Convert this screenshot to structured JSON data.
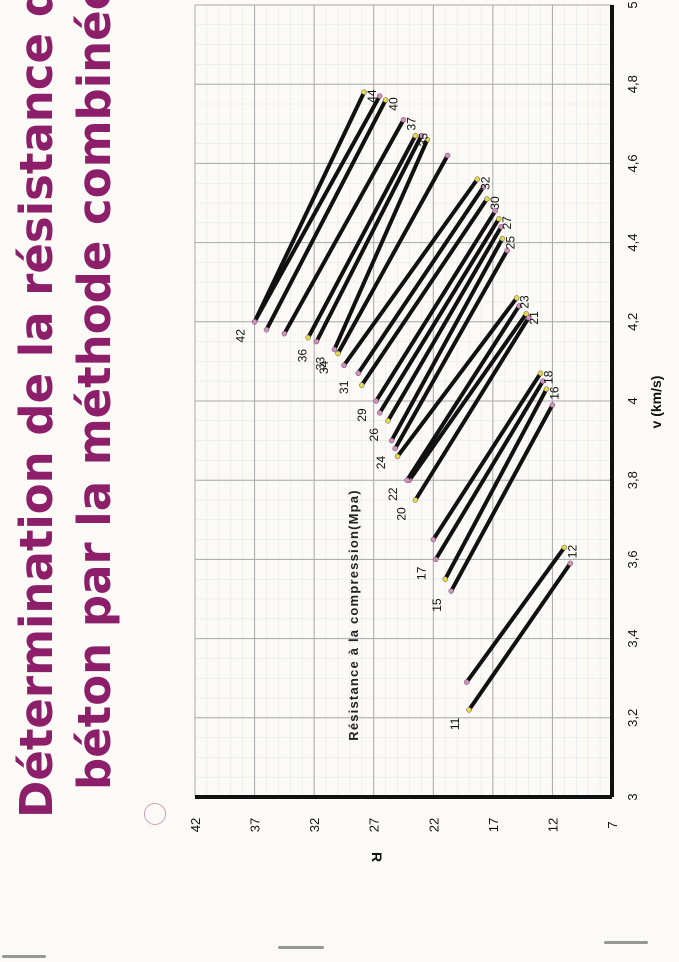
{
  "title": {
    "line1": "Détermination de la résistance du",
    "line2": "béton par la méthode combinée"
  },
  "chart_data": {
    "type": "line",
    "xlabel": "v (km/s)",
    "ylabel": "R",
    "annotation": "Résistance à la compression(Mpa)",
    "xlim": [
      3,
      5
    ],
    "ylim": [
      7,
      42
    ],
    "xticks": [
      "3",
      "3,2",
      "3,4",
      "3,6",
      "3,8",
      "4",
      "4,2",
      "4,4",
      "4,6",
      "4,8",
      "5"
    ],
    "yticks": [
      "7",
      "12",
      "17",
      "22",
      "27",
      "32",
      "37",
      "42"
    ],
    "grid": true,
    "series": [
      {
        "name": "11",
        "x": [
          3.22,
          3.59
        ],
        "y": [
          19.0,
          10.5
        ]
      },
      {
        "name": "12",
        "x": [
          3.29,
          3.63
        ],
        "y": [
          19.2,
          11.0
        ]
      },
      {
        "name": "15",
        "x": [
          3.52,
          3.99
        ],
        "y": [
          20.5,
          12.0
        ]
      },
      {
        "name": "16",
        "x": [
          3.55,
          4.03
        ],
        "y": [
          21.0,
          12.5
        ]
      },
      {
        "name": "17",
        "x": [
          3.6,
          4.05
        ],
        "y": [
          21.8,
          12.8
        ]
      },
      {
        "name": "18",
        "x": [
          3.65,
          4.07
        ],
        "y": [
          22.0,
          13.0
        ]
      },
      {
        "name": "20",
        "x": [
          3.75,
          4.21
        ],
        "y": [
          23.5,
          14.0
        ]
      },
      {
        "name": "21",
        "x": [
          3.8,
          4.22
        ],
        "y": [
          24.0,
          14.2
        ]
      },
      {
        "name": "22",
        "x": [
          3.8,
          4.24
        ],
        "y": [
          24.2,
          14.8
        ]
      },
      {
        "name": "23",
        "x": [
          3.86,
          4.26
        ],
        "y": [
          25.0,
          15.0
        ]
      },
      {
        "name": "24",
        "x": [
          3.88,
          4.38
        ],
        "y": [
          25.2,
          15.8
        ]
      },
      {
        "name": "25",
        "x": [
          3.9,
          4.41
        ],
        "y": [
          25.5,
          16.2
        ]
      },
      {
        "name": "26",
        "x": [
          3.95,
          4.44
        ],
        "y": [
          25.8,
          16.3
        ]
      },
      {
        "name": "27",
        "x": [
          3.97,
          4.46
        ],
        "y": [
          26.5,
          16.5
        ]
      },
      {
        "name": "29",
        "x": [
          4.0,
          4.48
        ],
        "y": [
          26.8,
          16.8
        ]
      },
      {
        "name": "30",
        "x": [
          4.04,
          4.51
        ],
        "y": [
          28.0,
          17.5
        ]
      },
      {
        "name": "31",
        "x": [
          4.07,
          4.54
        ],
        "y": [
          28.3,
          17.8
        ]
      },
      {
        "name": "32",
        "x": [
          4.09,
          4.56
        ],
        "y": [
          29.5,
          18.3
        ]
      },
      {
        "name": "34",
        "x": [
          4.12,
          4.62
        ],
        "y": [
          30.0,
          20.8
        ]
      },
      {
        "name": "33",
        "x": [
          4.13,
          4.66
        ],
        "y": [
          30.3,
          22.5
        ]
      },
      {
        "name": "36",
        "x": [
          4.15,
          4.67
        ],
        "y": [
          31.8,
          23.0
        ]
      },
      {
        "name": "35",
        "x": [
          4.16,
          4.67
        ],
        "y": [
          32.5,
          23.5
        ]
      },
      {
        "name": "37",
        "x": [
          4.17,
          4.71
        ],
        "y": [
          34.5,
          24.5
        ]
      },
      {
        "name": "40",
        "x": [
          4.18,
          4.76
        ],
        "y": [
          36.0,
          26.0
        ]
      },
      {
        "name": "42",
        "x": [
          4.2,
          4.77
        ],
        "y": [
          37.0,
          26.5
        ]
      },
      {
        "name": "44",
        "x": [
          4.2,
          4.78
        ],
        "y": [
          37.0,
          27.8
        ]
      }
    ]
  }
}
